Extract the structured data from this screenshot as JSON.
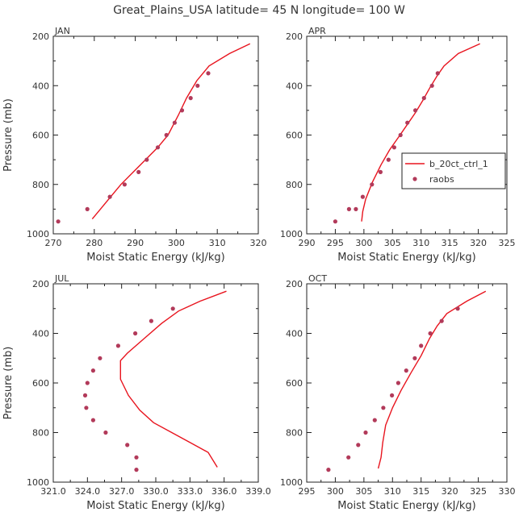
{
  "figure_title": "Great_Plains_USA   latitude= 45 N longitude= 100 W",
  "legend": {
    "model": "b_20ct_ctrl_1",
    "obs": "raobs",
    "model_color": "#e8141e",
    "obs_color": "#b23a5a"
  },
  "chart_data": [
    {
      "type": "line",
      "title": "JAN",
      "xlabel": "Moist Static Energy (kJ/kg)",
      "ylabel": "Pressure (mb)",
      "xlim": [
        270,
        320
      ],
      "ylim": [
        1000,
        200
      ],
      "y_inverted": true,
      "xticks": [
        "270",
        "280",
        "290",
        "300",
        "310",
        "320"
      ],
      "yticks": [
        "200",
        "400",
        "600",
        "800",
        "1000"
      ],
      "model": {
        "x": [
          318.0,
          313.0,
          308.0,
          305.0,
          302.5,
          300.5,
          298.0,
          295.5,
          292.5,
          289.5,
          286.5,
          284.0,
          281.5,
          279.5
        ],
        "y": [
          230,
          270,
          320,
          380,
          450,
          520,
          600,
          650,
          700,
          750,
          800,
          850,
          900,
          940
        ]
      },
      "obs": {
        "x": [
          307.8,
          305.2,
          303.5,
          301.4,
          299.6,
          297.6,
          295.5,
          292.8,
          290.8,
          287.4,
          283.8,
          278.3,
          271.2
        ],
        "y": [
          350,
          400,
          450,
          500,
          550,
          600,
          650,
          700,
          750,
          800,
          850,
          900,
          950
        ]
      }
    },
    {
      "type": "line",
      "title": "APR",
      "xlabel": "Moist Static Energy (kJ/kg)",
      "ylabel": "",
      "xlim": [
        290,
        325
      ],
      "ylim": [
        1000,
        200
      ],
      "y_inverted": true,
      "xticks": [
        "290",
        "295",
        "300",
        "305",
        "310",
        "315",
        "320",
        "325"
      ],
      "yticks": [
        "200",
        "400",
        "600",
        "800",
        "1000"
      ],
      "model": {
        "x": [
          320.3,
          316.5,
          314.0,
          312.8,
          311.5,
          310.3,
          309.0,
          307.5,
          306.0,
          304.5,
          303.0,
          301.5,
          300.3,
          299.8,
          299.6
        ],
        "y": [
          230,
          270,
          320,
          360,
          410,
          460,
          510,
          560,
          610,
          660,
          720,
          790,
          860,
          910,
          950
        ]
      },
      "obs": {
        "x": [
          312.9,
          311.9,
          310.5,
          309.0,
          307.6,
          306.4,
          305.3,
          304.3,
          302.9,
          301.4,
          299.8,
          298.6,
          297.4,
          295.0
        ],
        "y": [
          350,
          400,
          450,
          500,
          550,
          600,
          650,
          700,
          750,
          800,
          850,
          900,
          900,
          950
        ]
      }
    },
    {
      "type": "line",
      "title": "JUL",
      "xlabel": "Moist Static Energy (kJ/kg)",
      "ylabel": "Pressure (mb)",
      "xlim": [
        321,
        339
      ],
      "ylim": [
        1000,
        200
      ],
      "y_inverted": true,
      "xticks": [
        "321.0",
        "324.0",
        "327.0",
        "330.0",
        "333.0",
        "336.0",
        "339.0"
      ],
      "yticks": [
        "200",
        "400",
        "600",
        "800",
        "1000"
      ],
      "model": {
        "x": [
          336.2,
          333.9,
          332.0,
          330.5,
          329.0,
          327.5,
          326.9,
          326.9,
          327.6,
          328.6,
          329.8,
          331.4,
          333.0,
          334.6,
          335.4
        ],
        "y": [
          230,
          270,
          310,
          360,
          420,
          480,
          510,
          585,
          650,
          710,
          760,
          800,
          840,
          880,
          940
        ]
      },
      "obs": {
        "x": [
          331.5,
          329.6,
          328.2,
          326.7,
          325.1,
          324.5,
          324.0,
          323.8,
          323.9,
          324.5,
          325.6,
          327.5,
          328.3,
          328.3
        ],
        "y": [
          300,
          350,
          400,
          450,
          500,
          550,
          600,
          650,
          700,
          750,
          800,
          850,
          900,
          950
        ]
      }
    },
    {
      "type": "line",
      "title": "OCT",
      "xlabel": "Moist Static Energy (kJ/kg)",
      "ylabel": "",
      "xlim": [
        295,
        330
      ],
      "ylim": [
        1000,
        200
      ],
      "y_inverted": true,
      "xticks": [
        "295",
        "300",
        "305",
        "310",
        "315",
        "320",
        "325",
        "330"
      ],
      "yticks": [
        "200",
        "400",
        "600",
        "800",
        "1000"
      ],
      "model": {
        "x": [
          326.3,
          323.0,
          319.5,
          317.8,
          316.5,
          315.0,
          313.2,
          311.5,
          310.0,
          308.8,
          308.3,
          308.0,
          307.5
        ],
        "y": [
          230,
          270,
          320,
          370,
          420,
          490,
          560,
          630,
          700,
          770,
          840,
          900,
          945
        ]
      },
      "obs": {
        "x": [
          321.4,
          318.6,
          316.6,
          315.0,
          313.9,
          312.4,
          311.0,
          309.9,
          308.4,
          306.9,
          305.3,
          304.0,
          302.3,
          298.8
        ],
        "y": [
          300,
          350,
          400,
          450,
          500,
          550,
          600,
          650,
          700,
          750,
          800,
          850,
          900,
          950
        ]
      }
    }
  ]
}
